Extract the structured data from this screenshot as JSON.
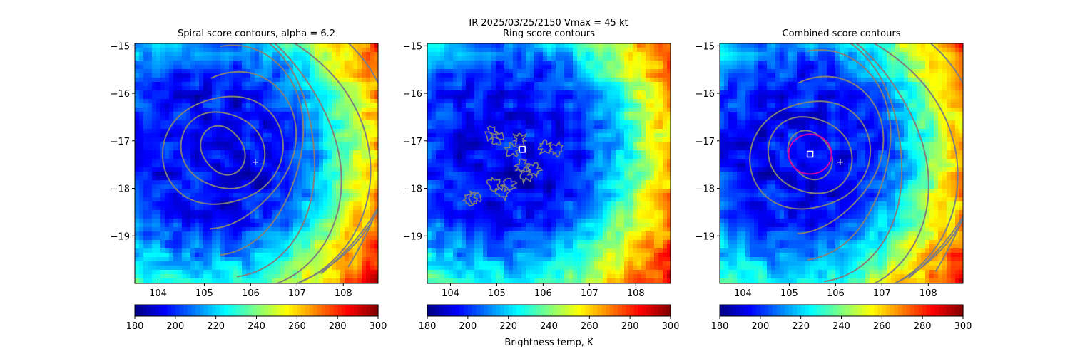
{
  "figure": {
    "suptitle_line1": "IR  2025/03/25/2150    Vmax = 45 kt",
    "colorbar_label": "Brightness temp, K"
  },
  "chart_data": [
    {
      "type": "heatmap",
      "title": "Spiral score contours, alpha =  6.2",
      "xlim": [
        103.5,
        108.75
      ],
      "ylim": [
        -20.0,
        -14.95
      ],
      "xticks": [
        104,
        105,
        106,
        107,
        108
      ],
      "xtick_labels": [
        "104",
        "105",
        "106",
        "107",
        "108"
      ],
      "yticks": [
        -15,
        -16,
        -17,
        -18,
        -19
      ],
      "ytick_labels": [
        "−15",
        "−16",
        "−17",
        "−18",
        "−19"
      ],
      "field": "brightness_temperature_K",
      "field_center": {
        "lon": 105.5,
        "lat": -17.2
      },
      "field_range": [
        180,
        300
      ],
      "colormap": "jet",
      "colorbar": {
        "min": 180,
        "max": 300,
        "ticks": [
          "180",
          "200",
          "220",
          "240",
          "260",
          "280",
          "300"
        ]
      },
      "contour_style": "spiral",
      "contour_center": {
        "lon": 105.4,
        "lat": -17.2
      },
      "plus_marker": {
        "lon": 106.1,
        "lat": -17.45
      },
      "square_marker": null,
      "circle_marker": null
    },
    {
      "type": "heatmap",
      "title": "Ring score contours",
      "xlim": [
        103.5,
        108.75
      ],
      "ylim": [
        -20.0,
        -14.95
      ],
      "xticks": [
        104,
        105,
        106,
        107,
        108
      ],
      "xtick_labels": [
        "104",
        "105",
        "106",
        "107",
        "108"
      ],
      "yticks": [
        -15,
        -16,
        -17,
        -18,
        -19
      ],
      "ytick_labels": [
        "−15",
        "−16",
        "−17",
        "−18",
        "−19"
      ],
      "field": "brightness_temperature_K",
      "field_center": {
        "lon": 105.5,
        "lat": -17.2
      },
      "field_range": [
        180,
        300
      ],
      "colormap": "jet",
      "colorbar": {
        "min": 180,
        "max": 300,
        "ticks": [
          "180",
          "200",
          "220",
          "240",
          "260",
          "280",
          "300"
        ]
      },
      "contour_style": "ring",
      "contour_center": {
        "lon": 105.3,
        "lat": -17.4
      },
      "plus_marker": null,
      "square_marker": {
        "lon": 105.55,
        "lat": -17.18
      },
      "circle_marker": null
    },
    {
      "type": "heatmap",
      "title": "Combined score contours",
      "xlim": [
        103.5,
        108.75
      ],
      "ylim": [
        -20.0,
        -14.95
      ],
      "xticks": [
        104,
        105,
        106,
        107,
        108
      ],
      "xtick_labels": [
        "104",
        "105",
        "106",
        "107",
        "108"
      ],
      "yticks": [
        -15,
        -16,
        -17,
        -18,
        -19
      ],
      "ytick_labels": [
        "−15",
        "−16",
        "−17",
        "−18",
        "−19"
      ],
      "field": "brightness_temperature_K",
      "field_center": {
        "lon": 105.5,
        "lat": -17.2
      },
      "field_range": [
        180,
        300
      ],
      "colormap": "jet",
      "colorbar": {
        "min": 180,
        "max": 300,
        "ticks": [
          "180",
          "200",
          "220",
          "240",
          "260",
          "280",
          "300"
        ]
      },
      "contour_style": "spiral",
      "contour_center": {
        "lon": 105.45,
        "lat": -17.3
      },
      "plus_marker": {
        "lon": 106.1,
        "lat": -17.45
      },
      "square_marker": {
        "lon": 105.45,
        "lat": -17.28
      },
      "circle_marker": {
        "lon": 105.45,
        "lat": -17.28
      }
    }
  ]
}
